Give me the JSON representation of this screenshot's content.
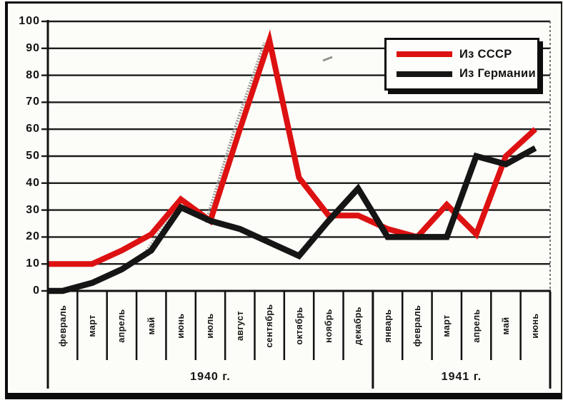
{
  "figure": {
    "background": "#fcfcf8",
    "ink_color": "#141414"
  },
  "chart_data": {
    "type": "line",
    "title": "",
    "xlabel": "",
    "ylabel": "",
    "ylim": [
      0,
      100
    ],
    "y_ticks": [
      0,
      10,
      20,
      30,
      40,
      50,
      60,
      70,
      80,
      90,
      100
    ],
    "grid": true,
    "legend_position": "top-right",
    "x_categories": [
      "февраль",
      "март",
      "апрель",
      "май",
      "июнь",
      "июль",
      "август",
      "сентябрь",
      "октябрь",
      "ноябрь",
      "декабрь",
      "январь",
      "февраль",
      "март",
      "апрель",
      "май",
      "июнь"
    ],
    "year_groups": [
      {
        "label": "1940 г.",
        "month_index_span": [
          0,
          10
        ]
      },
      {
        "label": "1941 г.",
        "month_index_span": [
          11,
          16
        ]
      }
    ],
    "series": [
      {
        "name": "Из СССР",
        "color": "#dd1111",
        "values": [
          10,
          10,
          15,
          21,
          34,
          26,
          60,
          93,
          42,
          28,
          28,
          23,
          20,
          32,
          21,
          50,
          60
        ]
      },
      {
        "name": "Из Германии",
        "color": "#151515",
        "values": [
          0,
          3,
          8,
          15,
          31,
          26,
          23,
          18,
          13,
          26,
          38,
          20,
          20,
          20,
          50,
          47,
          53
        ]
      }
    ]
  }
}
